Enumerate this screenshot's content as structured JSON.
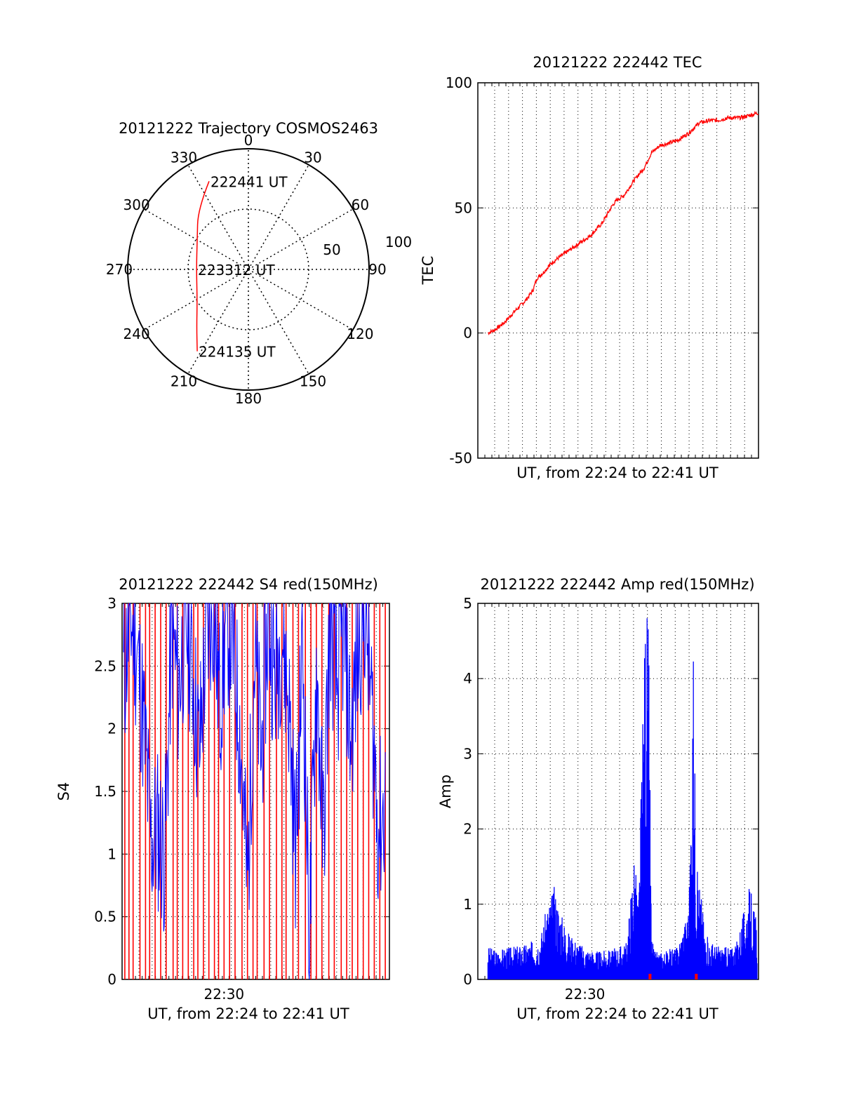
{
  "colors": {
    "trace": "#ff0000",
    "s4_blue": "#0000ff",
    "amp_blue": "#0000ff",
    "axis": "#000000",
    "grid": "#000000"
  },
  "chart_data": [
    {
      "id": "trajectory",
      "type": "polar",
      "title": "20121222 Trajectory COSMOS2463",
      "angle_labels": [
        "0",
        "30",
        "60",
        "90",
        "120",
        "150",
        "180",
        "210",
        "240",
        "270",
        "300",
        "330"
      ],
      "radial_ticks": [
        "50",
        "100"
      ],
      "elevation_max": 100,
      "path": [
        {
          "az": 336,
          "el": 20
        },
        {
          "az": 320,
          "el": 35
        },
        {
          "az": 300,
          "el": 51
        },
        {
          "az": 270,
          "el": 57
        },
        {
          "az": 240,
          "el": 51
        },
        {
          "az": 222,
          "el": 36
        },
        {
          "az": 212,
          "el": 20
        }
      ],
      "annotations": [
        {
          "text": "222441 UT",
          "az": 336,
          "el": 20
        },
        {
          "text": "223312 UT",
          "az": 270,
          "el": 57
        },
        {
          "text": "224135 UT",
          "az": 212,
          "el": 20
        }
      ],
      "grid": true
    },
    {
      "id": "tec",
      "type": "line",
      "title": "20121222 222442 TEC",
      "xlabel": "UT, from 22:24 to 22:41 UT",
      "ylabel": "TEC",
      "x_range_minutes": [
        22.2,
        41.6
      ],
      "ylim": [
        -50,
        100
      ],
      "yticks": [
        "-50",
        "0",
        "50",
        "100"
      ],
      "grid": true,
      "series": [
        {
          "color": "#ff0000",
          "x": [
            22.9,
            23.3,
            24.0,
            24.8,
            25.5,
            26.0,
            26.3,
            26.7,
            27.3,
            28.0,
            29.0,
            30.0,
            30.8,
            31.5,
            31.8,
            32.3,
            33.0,
            33.7,
            34.2,
            34.8,
            35.5,
            36.0,
            36.8,
            37.5,
            38.3,
            38.8,
            39.5,
            40.3,
            41.0,
            41.6
          ],
          "y": [
            0,
            1,
            4,
            9,
            13,
            17,
            22,
            24,
            28,
            31,
            35,
            39,
            44,
            51,
            53,
            55,
            61,
            66,
            72,
            75,
            76,
            77,
            80,
            84,
            85,
            85,
            86,
            86,
            87,
            88
          ]
        }
      ]
    },
    {
      "id": "s4",
      "type": "line",
      "title": "20121222 222442 S4 red(150MHz)",
      "xlabel": "UT, from 22:24 to 22:41 UT",
      "ylabel": "S4",
      "x_range_minutes": [
        22.2,
        41.6
      ],
      "xticks": [
        "22:30"
      ],
      "ylim": [
        0,
        3
      ],
      "yticks": [
        "0",
        "0.5",
        "1",
        "1.5",
        "2",
        "2.5",
        "3"
      ],
      "grid": true,
      "series": [
        {
          "name": "",
          "color": "#0000ff",
          "x": [
            22.3,
            22.8,
            23.3,
            23.8,
            24.3,
            24.8,
            25.3,
            25.8,
            26.3,
            26.8,
            27.3,
            27.8,
            28.3,
            28.8,
            29.3,
            29.8,
            30.3,
            30.8,
            31.3,
            31.8,
            32.3,
            32.8,
            33.3,
            33.8,
            34.3,
            34.8,
            35.3,
            35.8,
            36.3,
            36.8,
            37.3,
            37.8,
            38.3,
            38.8,
            39.3,
            39.8,
            40.3,
            40.8,
            41.3
          ],
          "y": [
            2.4,
            2.9,
            2.6,
            2.0,
            1.1,
            1.2,
            1.0,
            2.8,
            2.3,
            2.9,
            2.5,
            1.8,
            2.7,
            3.0,
            2.2,
            2.9,
            2.6,
            1.9,
            0.7,
            2.6,
            1.8,
            2.9,
            2.4,
            2.8,
            2.2,
            1.0,
            2.7,
            0.3,
            2.5,
            1.1,
            2.9,
            2.3,
            2.8,
            1.9,
            2.6,
            3.0,
            2.2,
            1.2,
            1.4
          ]
        }
      ],
      "red_spike_minutes": [
        22.4,
        22.7,
        23.0,
        23.5,
        23.9,
        24.2,
        24.6,
        25.0,
        25.4,
        25.9,
        26.2,
        26.6,
        27.0,
        27.4,
        27.7,
        28.1,
        28.5,
        28.9,
        29.2,
        29.6,
        30.0,
        30.4,
        30.9,
        31.3,
        31.7,
        32.0,
        32.5,
        32.9,
        33.4,
        33.8,
        34.1,
        34.6,
        35.0,
        35.5,
        35.9,
        36.3,
        36.7,
        37.2,
        37.6,
        38.1,
        38.5,
        38.9,
        39.3,
        39.7,
        40.1,
        40.5,
        40.9,
        41.3
      ]
    },
    {
      "id": "amp",
      "type": "line",
      "title": "20121222 222442 Amp red(150MHz)",
      "xlabel": "UT, from 22:24 to 22:41 UT",
      "ylabel": "Amp",
      "x_range_minutes": [
        22.2,
        41.6
      ],
      "xticks": [
        "22:30"
      ],
      "ylim": [
        0,
        5
      ],
      "yticks": [
        "0",
        "1",
        "2",
        "3",
        "4",
        "5"
      ],
      "grid": true,
      "series": [
        {
          "color": "#0000ff",
          "x": [
            22.9,
            23.5,
            24.5,
            25.5,
            26.5,
            27.0,
            27.5,
            28.0,
            28.5,
            29.5,
            30.5,
            31.5,
            32.5,
            33.0,
            33.3,
            33.8,
            34.0,
            34.2,
            34.4,
            35.0,
            36.0,
            36.8,
            37.1,
            37.3,
            37.6,
            37.9,
            38.3,
            39.0,
            40.0,
            41.0,
            41.5
          ],
          "y": [
            0.35,
            0.32,
            0.35,
            0.38,
            0.45,
            0.8,
            1.0,
            0.7,
            0.5,
            0.35,
            0.3,
            0.32,
            0.4,
            1.4,
            0.8,
            4.2,
            3.8,
            0.5,
            0.3,
            0.3,
            0.35,
            0.8,
            3.5,
            1.2,
            1.0,
            0.5,
            0.4,
            0.35,
            0.35,
            1.0,
            0.6
          ]
        }
      ],
      "red_marks_minutes": [
        34.1,
        37.3
      ]
    }
  ]
}
